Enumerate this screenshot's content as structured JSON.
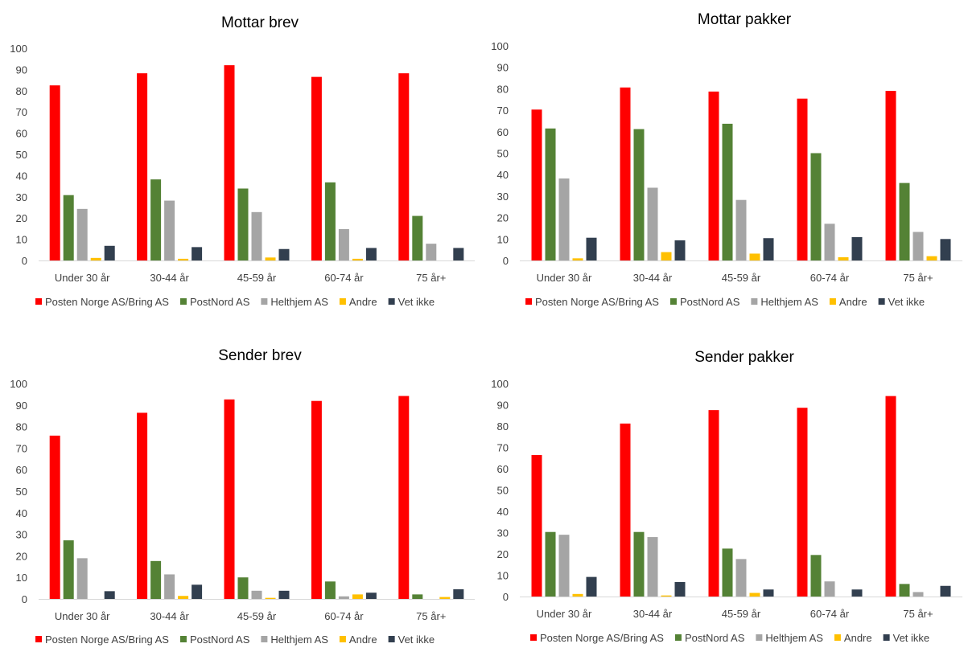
{
  "colors": {
    "Posten Norge AS/Bring AS": "#ff0000",
    "PostNord AS": "#548235",
    "Helthjem AS": "#a5a5a5",
    "Andre": "#ffc000",
    "Vet ikke": "#323f4f"
  },
  "chart_data": [
    {
      "type": "bar",
      "title": "Mottar brev",
      "categories": [
        "Under 30 år",
        "30-44 år",
        "45-59 år",
        "60-74 år",
        "75 år+"
      ],
      "ylim": [
        0,
        100
      ],
      "yticks": [
        "0",
        "10",
        "20",
        "30",
        "40",
        "50",
        "60",
        "70",
        "80",
        "90",
        "100"
      ],
      "grid": false,
      "legend_position": "bottom",
      "series": [
        {
          "name": "Posten Norge AS/Bring AS",
          "values": [
            82.5,
            88.2,
            92,
            86.5,
            88.2
          ]
        },
        {
          "name": "PostNord AS",
          "values": [
            30.8,
            38.2,
            33.9,
            36.8,
            21
          ]
        },
        {
          "name": "Helthjem AS",
          "values": [
            24.3,
            28.2,
            22.8,
            14.8,
            7.9
          ]
        },
        {
          "name": "Andre",
          "values": [
            1.2,
            0.8,
            1.4,
            0.8,
            0
          ]
        },
        {
          "name": "Vet ikke",
          "values": [
            6.9,
            6.3,
            5.4,
            5.9,
            5.9
          ]
        }
      ]
    },
    {
      "type": "bar",
      "title": "Mottar pakker",
      "categories": [
        "Under 30 år",
        "30-44 år",
        "45-59 år",
        "60-74 år",
        "75 år+"
      ],
      "ylim": [
        0,
        100
      ],
      "yticks": [
        "0",
        "10",
        "20",
        "30",
        "40",
        "50",
        "60",
        "70",
        "80",
        "90",
        "100"
      ],
      "grid": false,
      "legend_position": "bottom",
      "series": [
        {
          "name": "Posten Norge AS/Bring AS",
          "values": [
            70.3,
            80.6,
            78.7,
            75.4,
            79
          ]
        },
        {
          "name": "PostNord AS",
          "values": [
            61.5,
            61.2,
            63.7,
            50,
            36.1
          ]
        },
        {
          "name": "Helthjem AS",
          "values": [
            38.2,
            33.9,
            28.2,
            17.1,
            13.3
          ]
        },
        {
          "name": "Andre",
          "values": [
            1,
            3.9,
            3.2,
            1.5,
            2
          ]
        },
        {
          "name": "Vet ikke",
          "values": [
            10.6,
            9.4,
            10.4,
            10.9,
            10
          ]
        }
      ]
    },
    {
      "type": "bar",
      "title": "Sender brev",
      "categories": [
        "Under 30 år",
        "30-44 år",
        "45-59 år",
        "60-74 år",
        "75 år+"
      ],
      "ylim": [
        0,
        100
      ],
      "yticks": [
        "0",
        "10",
        "20",
        "30",
        "40",
        "50",
        "60",
        "70",
        "80",
        "90",
        "100"
      ],
      "grid": false,
      "legend_position": "bottom",
      "series": [
        {
          "name": "Posten Norge AS/Bring AS",
          "values": [
            75.8,
            86.4,
            92.6,
            91.9,
            94.2
          ]
        },
        {
          "name": "PostNord AS",
          "values": [
            27.2,
            17.6,
            10,
            8.1,
            2.1
          ]
        },
        {
          "name": "Helthjem AS",
          "values": [
            18.9,
            11.4,
            3.8,
            1.2,
            0
          ]
        },
        {
          "name": "Andre",
          "values": [
            0,
            1.4,
            0.5,
            2.1,
            0.9
          ]
        },
        {
          "name": "Vet ikke",
          "values": [
            3.6,
            6.6,
            3.8,
            2.9,
            4.5
          ]
        }
      ]
    },
    {
      "type": "bar",
      "title": "Sender pakker",
      "categories": [
        "Under 30 år",
        "30-44 år",
        "45-59 år",
        "60-74 år",
        "75 år+"
      ],
      "ylim": [
        0,
        100
      ],
      "yticks": [
        "0",
        "10",
        "20",
        "30",
        "40",
        "50",
        "60",
        "70",
        "80",
        "90",
        "100"
      ],
      "grid": false,
      "legend_position": "bottom",
      "series": [
        {
          "name": "Posten Norge AS/Bring AS",
          "values": [
            66.4,
            81.2,
            87.5,
            88.6,
            94.1
          ]
        },
        {
          "name": "PostNord AS",
          "values": [
            30.3,
            30.3,
            22.5,
            19.5,
            5.9
          ]
        },
        {
          "name": "Helthjem AS",
          "values": [
            29,
            27.9,
            17.6,
            7.1,
            2.1
          ]
        },
        {
          "name": "Andre",
          "values": [
            1.2,
            0.5,
            1.7,
            0,
            0
          ]
        },
        {
          "name": "Vet ikke",
          "values": [
            9.2,
            6.8,
            3.3,
            3.3,
            5
          ]
        }
      ]
    }
  ]
}
